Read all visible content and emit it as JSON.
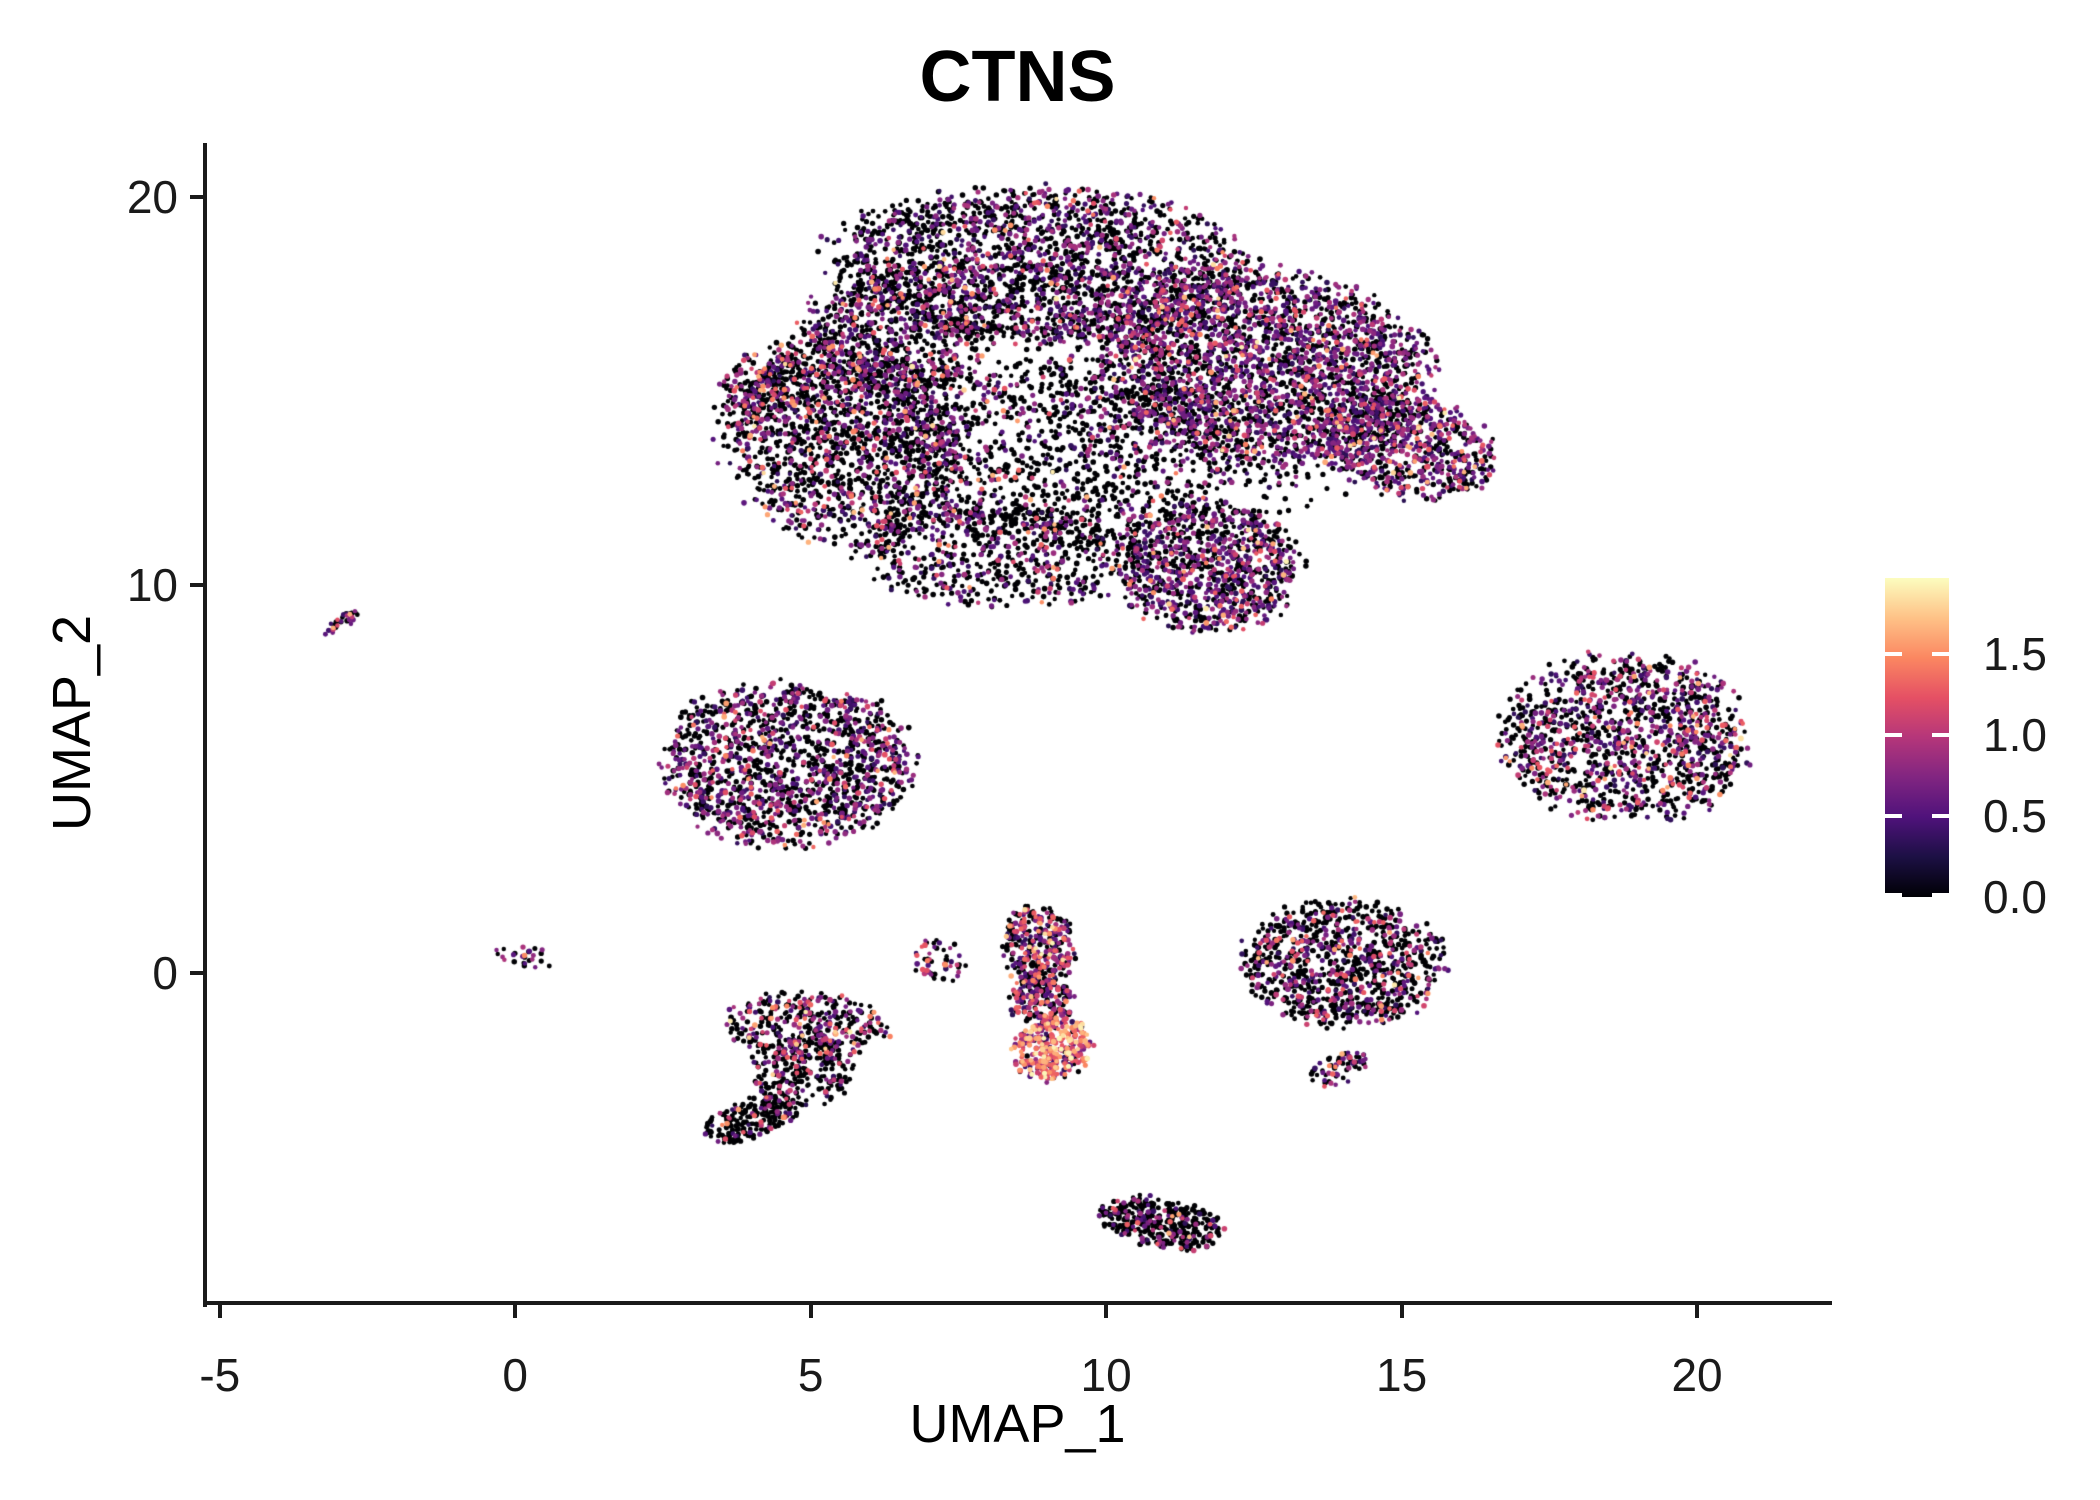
{
  "chart_data": {
    "type": "scatter",
    "title": "CTNS",
    "xlabel": "UMAP_1",
    "ylabel": "UMAP_2",
    "x_range": [
      -5.25,
      22.25
    ],
    "y_range": [
      -8.5,
      21.4
    ],
    "x_ticks": [
      -5,
      0,
      5,
      10,
      15,
      20
    ],
    "y_ticks": [
      0,
      10,
      20
    ],
    "grid": false,
    "legend_position": "right",
    "point_radius_px": 2.5,
    "seed": 7,
    "colorbar": {
      "ticks": [
        0.0,
        0.5,
        1.0,
        1.5
      ],
      "tick_labels": [
        "0.0",
        "0.5",
        "1.0",
        "1.5"
      ],
      "vmax": 1.97,
      "palette_name": "magma",
      "palette": [
        [
          0.0,
          "#000004"
        ],
        [
          0.125,
          "#1c1044"
        ],
        [
          0.25,
          "#4f127b"
        ],
        [
          0.375,
          "#812581"
        ],
        [
          0.5,
          "#b5367a"
        ],
        [
          0.625,
          "#e55064"
        ],
        [
          0.75,
          "#fb8761"
        ],
        [
          0.875,
          "#fec287"
        ],
        [
          1.0,
          "#fcfdbf"
        ]
      ]
    },
    "expression_bands": {
      "zero": 0.0,
      "purple": [
        0.3,
        0.95
      ],
      "pink": [
        1.0,
        1.35
      ],
      "orange": [
        1.38,
        1.68
      ],
      "pale": [
        1.7,
        1.95
      ]
    },
    "clusters": [
      {
        "name": "main-top-band",
        "cx": 8.9,
        "cy": 18.2,
        "rx": 3.4,
        "ry": 1.95,
        "rot": -4,
        "n": 2100,
        "w": [
          0.6,
          0.335,
          0.045,
          0.015,
          0.005
        ]
      },
      {
        "name": "main-top-left",
        "cx": 6.4,
        "cy": 16.4,
        "rx": 1.5,
        "ry": 1.6,
        "rot": 0,
        "n": 600,
        "w": [
          0.62,
          0.32,
          0.04,
          0.015,
          0.005
        ]
      },
      {
        "name": "main-right-lobe",
        "cx": 12.7,
        "cy": 15.6,
        "rx": 2.7,
        "ry": 2.4,
        "rot": -25,
        "n": 2400,
        "w": [
          0.44,
          0.46,
          0.07,
          0.025,
          0.005
        ]
      },
      {
        "name": "main-right-tip",
        "cx": 15.1,
        "cy": 13.6,
        "rx": 1.5,
        "ry": 1.2,
        "rot": -35,
        "n": 700,
        "w": [
          0.42,
          0.46,
          0.08,
          0.03,
          0.01
        ]
      },
      {
        "name": "main-left-lobe",
        "cx": 5.6,
        "cy": 13.8,
        "rx": 2.0,
        "ry": 2.6,
        "rot": 8,
        "n": 1500,
        "w": [
          0.62,
          0.29,
          0.06,
          0.025,
          0.005
        ]
      },
      {
        "name": "main-left-point",
        "cx": 4.3,
        "cy": 15.2,
        "rx": 0.8,
        "ry": 0.8,
        "rot": 0,
        "n": 180,
        "w": [
          0.5,
          0.34,
          0.1,
          0.05,
          0.01
        ]
      },
      {
        "name": "main-center-sparse",
        "cx": 9.4,
        "cy": 13.4,
        "rx": 2.8,
        "ry": 2.3,
        "rot": 0,
        "n": 850,
        "w": [
          0.72,
          0.23,
          0.035,
          0.012,
          0.003
        ]
      },
      {
        "name": "main-bottom-tongue",
        "cx": 11.7,
        "cy": 10.5,
        "rx": 1.5,
        "ry": 1.6,
        "rot": 12,
        "n": 950,
        "w": [
          0.48,
          0.44,
          0.06,
          0.015,
          0.005
        ]
      },
      {
        "name": "main-bottom-edge",
        "cx": 8.1,
        "cy": 10.8,
        "rx": 2.3,
        "ry": 1.3,
        "rot": -6,
        "n": 600,
        "w": [
          0.68,
          0.27,
          0.035,
          0.012,
          0.003
        ]
      },
      {
        "name": "main-halo",
        "cx": 9.4,
        "cy": 14.6,
        "rx": 4.9,
        "ry": 3.7,
        "rot": -8,
        "n": 800,
        "w": [
          0.78,
          0.185,
          0.025,
          0.008,
          0.002
        ]
      },
      {
        "name": "far-left-streak",
        "cx": -2.85,
        "cy": 9.1,
        "rx": 0.48,
        "ry": 0.13,
        "rot": 42,
        "n": 30,
        "w": [
          0.3,
          0.42,
          0.16,
          0.1,
          0.02
        ]
      },
      {
        "name": "mid-left",
        "cx": 4.6,
        "cy": 5.4,
        "rx": 2.05,
        "ry": 2.0,
        "rot": -10,
        "n": 1450,
        "w": [
          0.54,
          0.38,
          0.06,
          0.018,
          0.002
        ]
      },
      {
        "name": "far-right",
        "cx": 18.8,
        "cy": 6.05,
        "rx": 2.0,
        "ry": 2.1,
        "rot": 20,
        "n": 1250,
        "w": [
          0.55,
          0.33,
          0.09,
          0.025,
          0.005
        ]
      },
      {
        "name": "tiny-origin",
        "cx": 0.1,
        "cy": 0.45,
        "rx": 0.5,
        "ry": 0.3,
        "rot": -20,
        "n": 26,
        "w": [
          0.42,
          0.42,
          0.13,
          0.03,
          0.0
        ]
      },
      {
        "name": "lobed-top",
        "cx": 4.9,
        "cy": -1.35,
        "rx": 1.35,
        "ry": 0.8,
        "rot": -5,
        "n": 340,
        "w": [
          0.6,
          0.26,
          0.1,
          0.03,
          0.01
        ]
      },
      {
        "name": "lobed-mid",
        "cx": 4.85,
        "cy": -2.5,
        "rx": 0.85,
        "ry": 0.85,
        "rot": 0,
        "n": 240,
        "w": [
          0.66,
          0.24,
          0.08,
          0.015,
          0.005
        ]
      },
      {
        "name": "lobed-arm",
        "cx": 4.0,
        "cy": -3.75,
        "rx": 0.85,
        "ry": 0.45,
        "rot": 30,
        "n": 210,
        "w": [
          0.77,
          0.16,
          0.06,
          0.01,
          0.0
        ]
      },
      {
        "name": "small-seven",
        "cx": 7.15,
        "cy": 0.3,
        "rx": 0.45,
        "ry": 0.55,
        "rot": 0,
        "n": 48,
        "w": [
          0.47,
          0.32,
          0.17,
          0.04,
          0.0
        ]
      },
      {
        "name": "streak-top",
        "cx": 8.85,
        "cy": 0.7,
        "rx": 0.6,
        "ry": 1.05,
        "rot": 3,
        "n": 330,
        "w": [
          0.44,
          0.35,
          0.14,
          0.05,
          0.02
        ]
      },
      {
        "name": "streak-mid",
        "cx": 8.9,
        "cy": -0.7,
        "rx": 0.5,
        "ry": 0.7,
        "rot": 0,
        "n": 190,
        "w": [
          0.48,
          0.31,
          0.15,
          0.05,
          0.01
        ]
      },
      {
        "name": "streak-hotspot",
        "cx": 9.1,
        "cy": -1.95,
        "rx": 0.65,
        "ry": 0.8,
        "rot": -8,
        "n": 340,
        "w": [
          0.1,
          0.24,
          0.33,
          0.21,
          0.12
        ]
      },
      {
        "name": "right-mid",
        "cx": 14.0,
        "cy": 0.25,
        "rx": 1.65,
        "ry": 1.55,
        "rot": 0,
        "n": 950,
        "w": [
          0.65,
          0.25,
          0.08,
          0.017,
          0.003
        ]
      },
      {
        "name": "right-mid-tail",
        "cx": 13.9,
        "cy": -2.5,
        "rx": 0.6,
        "ry": 0.32,
        "rot": 38,
        "n": 62,
        "w": [
          0.52,
          0.36,
          0.1,
          0.02,
          0.0
        ]
      },
      {
        "name": "bottom-blob",
        "cx": 10.95,
        "cy": -6.45,
        "rx": 1.05,
        "ry": 0.6,
        "rot": -18,
        "n": 380,
        "w": [
          0.79,
          0.15,
          0.045,
          0.012,
          0.003
        ]
      }
    ]
  }
}
